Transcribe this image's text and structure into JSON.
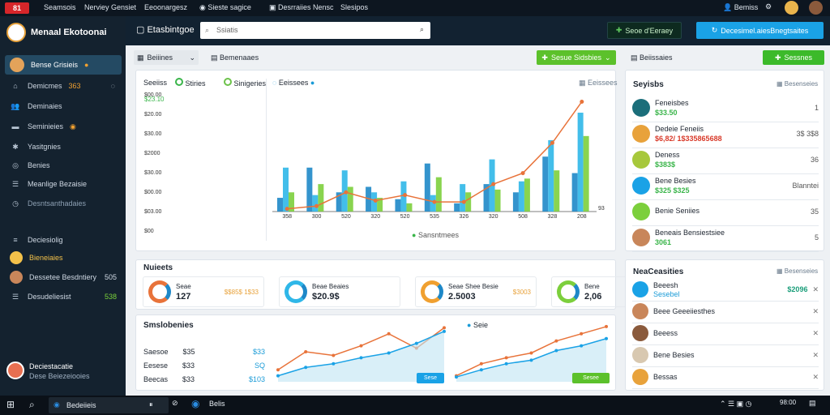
{
  "topbar": {
    "badge": "81",
    "items": [
      "Seamsois",
      "Nerviey Gensiet",
      "Eeoonargesz",
      "Sieste sagice",
      "Desrraiies Nensc",
      "Slesipos"
    ],
    "user": "Bemiss"
  },
  "sidebar": {
    "brand": "Menaal Ekotoonai",
    "active": "Bense Grisieis",
    "items": [
      {
        "label": "Demicmes",
        "badge": "363"
      },
      {
        "label": "Deminaies"
      },
      {
        "label": "Seminieies"
      },
      {
        "label": "Yasitgnies"
      },
      {
        "label": "Benies"
      },
      {
        "label": "Meanlige Bezaisie"
      },
      {
        "label": "Desntsanthadaies"
      },
      {
        "label": "Deciesiolig"
      }
    ],
    "people": [
      {
        "name": "Bieneiaies",
        "v": ""
      },
      {
        "name": "Dessetee Besdntiery",
        "v": "505"
      },
      {
        "name": "Desudeliesist",
        "v": "538"
      }
    ],
    "footer": {
      "name": "Deciestacatie",
      "sub": "Dese Beiezeiooies"
    }
  },
  "header": {
    "title": "Etasbintgoe",
    "search_placeholder": "Ssiatis",
    "btn1": "Seoe d'Eeraey",
    "btn2": "Decesimel.aiesBnegtsaites"
  },
  "toolbar": {
    "tab1": "Beiiines",
    "tab2": "Bemenaaes",
    "green1": "Sesue Sidsbies",
    "green2": "Sessnes",
    "right_title": "Beiissaies"
  },
  "chart": {
    "legend": [
      "Seeiiss",
      "Stiries",
      "Sinigeries"
    ],
    "top_right": "Eeissees",
    "x_ticks": [
      "358",
      "300",
      "520",
      "320",
      "520",
      "535",
      "326",
      "320",
      "508",
      "328",
      "208"
    ],
    "x_end": "93",
    "ylabels": [
      "$00",
      "$03.00",
      "$00.00",
      "$30.00",
      "$2000",
      "$30.00",
      "$20.00",
      "$00.00"
    ],
    "ytop": "$23.10",
    "footer": "Sansntmees",
    "chart_data": {
      "type": "bar",
      "categories": [
        "358",
        "300",
        "520",
        "320",
        "520",
        "535",
        "326",
        "320",
        "508",
        "328",
        "208"
      ],
      "series": [
        {
          "name": "Seeiiss",
          "values": [
            10,
            32,
            14,
            18,
            9,
            35,
            6,
            20,
            14,
            40,
            28
          ]
        },
        {
          "name": "Stiries",
          "values": [
            32,
            12,
            30,
            14,
            22,
            12,
            20,
            38,
            22,
            52,
            72
          ]
        },
        {
          "name": "Sinigeries",
          "values": [
            14,
            20,
            18,
            10,
            6,
            25,
            14,
            16,
            24,
            30,
            55
          ]
        }
      ],
      "line": [
        2,
        4,
        14,
        8,
        12,
        7,
        7,
        20,
        28,
        50,
        80
      ]
    }
  },
  "rightpanel": {
    "title": "Seyisbs",
    "badge": "Besenseies",
    "rows": [
      {
        "name": "Feneisbes",
        "sub": "$33.50",
        "v": "1"
      },
      {
        "name": "Dedeie Feneiis",
        "sub": "$6,82/ 1$335865688",
        "v": "3$ 3$8"
      },
      {
        "name": "Deness",
        "sub": "$383$",
        "v": "36"
      },
      {
        "name": "Bene Besies",
        "sub": "$325 $325",
        "v": "Blanntei"
      },
      {
        "name": "Benie Seniies",
        "sub": "",
        "v": "35"
      },
      {
        "name": "Beneais Bensiestsiee",
        "sub": "3061",
        "v": "5"
      }
    ]
  },
  "metrics": {
    "title": "Nuieets",
    "items": [
      {
        "label": "Seae",
        "val": "127",
        "pct": "$$85$ 1$33"
      },
      {
        "label": "Beae Beaies",
        "val": "$20.9$",
        "pct": ""
      },
      {
        "label": "Seae Shee Besie",
        "val": "2.5003",
        "pct": "$3003"
      },
      {
        "label": "Bene",
        "val": "2,06",
        "pct": ""
      }
    ]
  },
  "lines": {
    "title": "Smslobenies",
    "rows": [
      {
        "name": "Saesoe",
        "v": "$35"
      },
      {
        "name": "Eesese",
        "v": "$33"
      },
      {
        "name": "Beecas",
        "v": "$33"
      }
    ],
    "vals": [
      "$33",
      "SQ",
      "$103"
    ],
    "legend": "Seie",
    "pill1": "Sese",
    "pill2": "Sesee",
    "chart_data": [
      {
        "type": "line",
        "series": [
          {
            "values": [
              10,
              25,
              22,
              30,
              40,
              28,
              45
            ]
          },
          {
            "values": [
              5,
              12,
              15,
              20,
              24,
              32,
              42
            ]
          }
        ]
      },
      {
        "type": "line",
        "series": [
          {
            "values": [
              5,
              15,
              20,
              24,
              34,
              40,
              46
            ]
          },
          {
            "values": [
              4,
              10,
              15,
              18,
              26,
              30,
              36
            ]
          }
        ]
      }
    ]
  },
  "notifications": {
    "title": "NeaCeasities",
    "badge": "Besenseies",
    "rows": [
      {
        "name": "Beeesh",
        "sub": "Sesebel",
        "v": "$2096"
      },
      {
        "name": "Beee Geeeiiesthes",
        "sub": "",
        "v": ""
      },
      {
        "name": "Beeess",
        "sub": "",
        "v": ""
      },
      {
        "name": "Bene Besies",
        "sub": "",
        "v": ""
      },
      {
        "name": "Bessas",
        "sub": "",
        "v": ""
      }
    ]
  },
  "taskbar": {
    "app": "Bedeiieis",
    "app2": "Belis",
    "time": "98:00"
  }
}
